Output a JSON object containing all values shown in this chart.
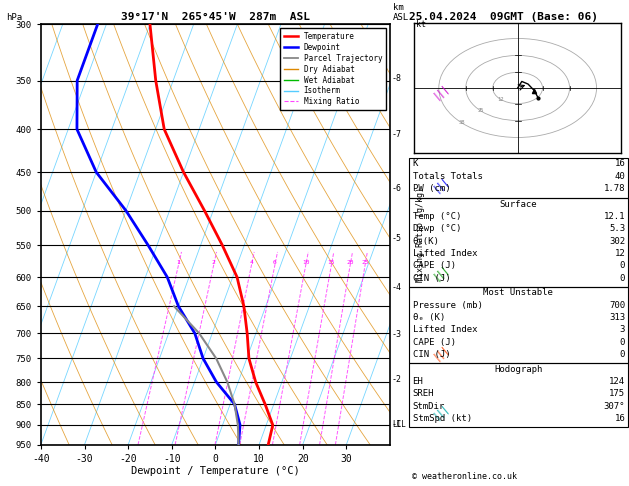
{
  "title_center": "39°17'N  265°45'W  287m  ASL",
  "title_right": "25.04.2024  09GMT (Base: 06)",
  "xlabel": "Dewpoint / Temperature (°C)",
  "copyright": "© weatheronline.co.uk",
  "pressure_levels": [
    300,
    350,
    400,
    450,
    500,
    550,
    600,
    650,
    700,
    750,
    800,
    850,
    900,
    950
  ],
  "temp_ticks": [
    -40,
    -30,
    -20,
    -10,
    0,
    10,
    20,
    30
  ],
  "temperature_data": {
    "pressure": [
      300,
      350,
      400,
      450,
      500,
      550,
      600,
      650,
      700,
      750,
      800,
      850,
      900,
      950
    ],
    "temp": [
      -50.0,
      -44.0,
      -38.0,
      -30.0,
      -22.0,
      -15.0,
      -9.0,
      -5.0,
      -2.0,
      0.5,
      4.0,
      8.0,
      11.5,
      12.1
    ],
    "color": "#ff0000",
    "linewidth": 2.0
  },
  "dewpoint_data": {
    "pressure": [
      300,
      350,
      400,
      450,
      500,
      550,
      600,
      650,
      700,
      750,
      800,
      850,
      900,
      950
    ],
    "temp": [
      -62.0,
      -62.0,
      -58.0,
      -50.0,
      -40.0,
      -32.0,
      -25.0,
      -20.0,
      -14.0,
      -10.0,
      -5.0,
      1.0,
      4.0,
      5.3
    ],
    "color": "#0000ff",
    "linewidth": 2.0
  },
  "parcel_data": {
    "pressure": [
      950,
      900,
      850,
      800,
      750,
      700,
      650
    ],
    "temp": [
      5.3,
      3.5,
      1.0,
      -2.5,
      -7.0,
      -13.0,
      -21.0
    ],
    "color": "#888888",
    "linewidth": 1.5
  },
  "km_ticks": [
    1,
    2,
    3,
    4,
    5,
    6,
    7,
    8
  ],
  "km_pressures": [
    898,
    795,
    703,
    618,
    540,
    470,
    406,
    348
  ],
  "LCL_pressure": 900,
  "mixing_ratio_vals": [
    1,
    2,
    4,
    6,
    10,
    15,
    20,
    25
  ],
  "info": {
    "K": "16",
    "Totals_Totals": "40",
    "PW_cm": "1.78",
    "Surface_Temp": "12.1",
    "Surface_Dewp": "5.3",
    "Surface_theta_e": "302",
    "Surface_LI": "12",
    "Surface_CAPE": "0",
    "Surface_CIN": "0",
    "MU_Pressure": "700",
    "MU_theta_e": "313",
    "MU_LI": "3",
    "MU_CAPE": "0",
    "MU_CIN": "0",
    "EH": "124",
    "SREH": "175",
    "StmDir": "307°",
    "StmSpd": "16"
  },
  "wind_barbs": [
    {
      "p": 300,
      "color": "#cc00cc"
    },
    {
      "p": 500,
      "color": "#0000ff"
    },
    {
      "p": 700,
      "color": "#009900"
    },
    {
      "p": 850,
      "color": "#ff4400"
    },
    {
      "p": 950,
      "color": "#00cccc"
    }
  ]
}
